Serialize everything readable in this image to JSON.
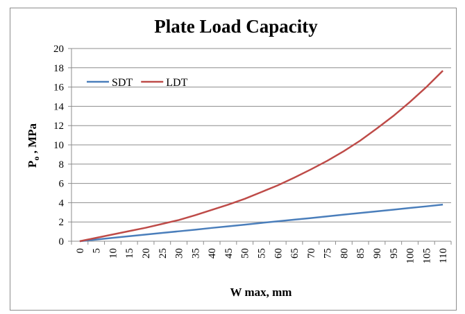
{
  "chart_data": {
    "type": "line",
    "title": "Plate Load Capacity",
    "y_label_parts": [
      "P",
      "o",
      " ,  MPa"
    ],
    "x_label": "W max, mm",
    "categories": [
      0,
      5,
      10,
      15,
      20,
      25,
      30,
      35,
      40,
      45,
      50,
      55,
      60,
      65,
      70,
      75,
      80,
      85,
      90,
      95,
      100,
      105,
      110
    ],
    "series": [
      {
        "name": "SDT",
        "color": "#4a7ebb",
        "values": [
          0,
          0.17,
          0.35,
          0.52,
          0.69,
          0.86,
          1.03,
          1.2,
          1.38,
          1.55,
          1.72,
          1.9,
          2.07,
          2.24,
          2.4,
          2.58,
          2.76,
          2.93,
          3.1,
          3.27,
          3.45,
          3.62,
          3.8
        ]
      },
      {
        "name": "LDT",
        "color": "#be4b48",
        "values": [
          0,
          0.35,
          0.7,
          1.05,
          1.4,
          1.8,
          2.2,
          2.7,
          3.25,
          3.8,
          4.4,
          5.1,
          5.8,
          6.6,
          7.45,
          8.35,
          9.35,
          10.45,
          11.7,
          13.0,
          14.45,
          16.0,
          17.7
        ]
      }
    ],
    "ylim": [
      0,
      20
    ],
    "yticks": [
      0,
      2,
      4,
      6,
      8,
      10,
      12,
      14,
      16,
      18,
      20
    ],
    "grid": true,
    "legend": "top-left"
  }
}
